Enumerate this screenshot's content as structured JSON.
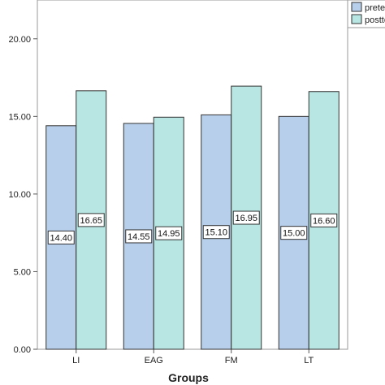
{
  "chart_data": {
    "type": "bar",
    "title": "",
    "xlabel": "Groups",
    "ylabel": "",
    "categories": [
      "LI",
      "EAG",
      "FM",
      "LT"
    ],
    "series": [
      {
        "name": "prete",
        "values": [
          14.4,
          14.55,
          15.1,
          15.0
        ],
        "labels": [
          "14.40",
          "14.55",
          "15.10",
          "15.00"
        ],
        "color": "#b7cfeb"
      },
      {
        "name": "postte",
        "values": [
          16.65,
          14.95,
          16.95,
          16.6
        ],
        "labels": [
          "16.65",
          "14.95",
          "16.95",
          "16.60"
        ],
        "color": "#b8e6e2"
      }
    ],
    "ylim": [
      0,
      22.5
    ],
    "yticks": [
      0,
      5,
      10,
      15,
      20
    ],
    "ytick_labels": [
      "0.00",
      "5.00",
      "10.00",
      "15.00",
      "20.00"
    ],
    "grid": false,
    "legend_position": "top-right"
  }
}
